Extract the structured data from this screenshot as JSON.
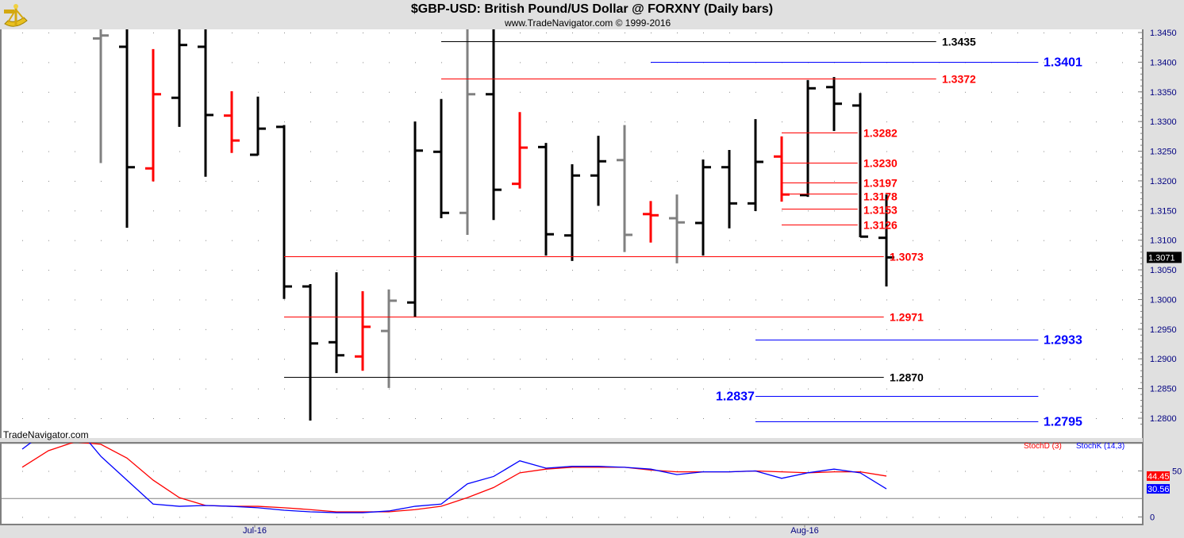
{
  "chart_data": {
    "type": "ohlc",
    "title": "$GBP-USD:  British Pound/US Dollar @ FORXNY  (Daily bars)",
    "subtitle": "www.TradeNavigator.com © 1999-2016",
    "watermark": "TradeNavigator.com",
    "price_axis": {
      "ylim": [
        1.278,
        1.346
      ],
      "ticks": [
        "1.3450",
        "1.3400",
        "1.3350",
        "1.3300",
        "1.3250",
        "1.3200",
        "1.3150",
        "1.3100",
        "1.3050",
        "1.3000",
        "1.2950",
        "1.2900",
        "1.2850",
        "1.2800"
      ],
      "last_price": "1.3071"
    },
    "date_axis": {
      "labels": [
        {
          "text": "Jul-16",
          "bar": 6
        },
        {
          "text": "Aug-16",
          "bar": 27
        }
      ]
    },
    "bars": [
      {
        "o": 1.344,
        "h": 1.347,
        "l": 1.323,
        "c": 1.3445,
        "color": "#808080"
      },
      {
        "o": 1.3426,
        "h": 1.347,
        "l": 1.3121,
        "c": 1.3223,
        "color": "#000000"
      },
      {
        "o": 1.3221,
        "h": 1.3422,
        "l": 1.3199,
        "c": 1.3346,
        "color": "#ff0000"
      },
      {
        "o": 1.334,
        "h": 1.347,
        "l": 1.3291,
        "c": 1.3429,
        "color": "#000000"
      },
      {
        "o": 1.3426,
        "h": 1.347,
        "l": 1.3207,
        "c": 1.3311,
        "color": "#000000"
      },
      {
        "o": 1.331,
        "h": 1.3351,
        "l": 1.3247,
        "c": 1.3268,
        "color": "#ff0000"
      },
      {
        "o": 1.3244,
        "h": 1.3342,
        "l": 1.3243,
        "c": 1.3288,
        "color": "#000000"
      },
      {
        "o": 1.3291,
        "h": 1.3294,
        "l": 1.3001,
        "c": 1.3022,
        "color": "#000000"
      },
      {
        "o": 1.3022,
        "h": 1.3026,
        "l": 1.2796,
        "c": 1.2926,
        "color": "#000000"
      },
      {
        "o": 1.2928,
        "h": 1.3046,
        "l": 1.2876,
        "c": 1.2906,
        "color": "#000000"
      },
      {
        "o": 1.2904,
        "h": 1.3014,
        "l": 1.288,
        "c": 1.2954,
        "color": "#ff0000"
      },
      {
        "o": 1.2947,
        "h": 1.3017,
        "l": 1.2851,
        "c": 1.2998,
        "color": "#808080"
      },
      {
        "o": 1.2995,
        "h": 1.33,
        "l": 1.2971,
        "c": 1.3251,
        "color": "#000000"
      },
      {
        "o": 1.3249,
        "h": 1.3338,
        "l": 1.3137,
        "c": 1.3146,
        "color": "#000000"
      },
      {
        "o": 1.3146,
        "h": 1.347,
        "l": 1.3109,
        "c": 1.3346,
        "color": "#808080"
      },
      {
        "o": 1.3346,
        "h": 1.347,
        "l": 1.3134,
        "c": 1.3185,
        "color": "#000000"
      },
      {
        "o": 1.3195,
        "h": 1.3316,
        "l": 1.3187,
        "c": 1.3256,
        "color": "#ff0000"
      },
      {
        "o": 1.3257,
        "h": 1.3264,
        "l": 1.3074,
        "c": 1.311,
        "color": "#000000"
      },
      {
        "o": 1.3108,
        "h": 1.3228,
        "l": 1.3065,
        "c": 1.3209,
        "color": "#000000"
      },
      {
        "o": 1.3209,
        "h": 1.3276,
        "l": 1.3158,
        "c": 1.3233,
        "color": "#000000"
      },
      {
        "o": 1.3235,
        "h": 1.3294,
        "l": 1.308,
        "c": 1.3109,
        "color": "#808080"
      },
      {
        "o": 1.3144,
        "h": 1.3166,
        "l": 1.3096,
        "c": 1.3142,
        "color": "#ff0000"
      },
      {
        "o": 1.3137,
        "h": 1.3177,
        "l": 1.3061,
        "c": 1.313,
        "color": "#808080"
      },
      {
        "o": 1.3129,
        "h": 1.3236,
        "l": 1.3074,
        "c": 1.3223,
        "color": "#000000"
      },
      {
        "o": 1.3223,
        "h": 1.3252,
        "l": 1.312,
        "c": 1.3162,
        "color": "#000000"
      },
      {
        "o": 1.3162,
        "h": 1.3304,
        "l": 1.3149,
        "c": 1.3232,
        "color": "#000000"
      },
      {
        "o": 1.3241,
        "h": 1.3275,
        "l": 1.3165,
        "c": 1.3177,
        "color": "#ff0000"
      },
      {
        "o": 1.3176,
        "h": 1.337,
        "l": 1.3173,
        "c": 1.3356,
        "color": "#000000"
      },
      {
        "o": 1.3358,
        "h": 1.3375,
        "l": 1.3284,
        "c": 1.333,
        "color": "#000000"
      },
      {
        "o": 1.3327,
        "h": 1.3348,
        "l": 1.3105,
        "c": 1.3106,
        "color": "#000000"
      },
      {
        "o": 1.3104,
        "h": 1.3177,
        "l": 1.3022,
        "c": 1.3071,
        "color": "#000000"
      }
    ],
    "levels": [
      {
        "label": "1.3435",
        "value": 1.3435,
        "from": 16,
        "to": 34.9,
        "color": "#000000",
        "big": false
      },
      {
        "label": "1.3401",
        "value": 1.3401,
        "from": 24,
        "to": 38.8,
        "color": "#0000ff",
        "big": true
      },
      {
        "label": "1.3372",
        "value": 1.3372,
        "from": 16,
        "to": 34.9,
        "color": "#ff0000",
        "big": false
      },
      {
        "label": "1.3282",
        "value": 1.3282,
        "from": 29,
        "to": 31.9,
        "color": "#ff0000",
        "big": false
      },
      {
        "label": "1.3230",
        "value": 1.323,
        "from": 29,
        "to": 31.9,
        "color": "#ff0000",
        "big": false
      },
      {
        "label": "1.3197",
        "value": 1.3197,
        "from": 29,
        "to": 31.9,
        "color": "#ff0000",
        "big": false
      },
      {
        "label": "1.3178",
        "value": 1.3178,
        "from": 29,
        "to": 31.9,
        "color": "#ff0000",
        "big": false
      },
      {
        "label": "1.3153",
        "value": 1.3153,
        "from": 29,
        "to": 31.9,
        "color": "#ff0000",
        "big": false
      },
      {
        "label": "1.3126",
        "value": 1.3126,
        "from": 29,
        "to": 31.9,
        "color": "#ff0000",
        "big": false
      },
      {
        "label": "1.3073",
        "value": 1.3073,
        "from": 10,
        "to": 32.9,
        "color": "#ff0000",
        "big": false
      },
      {
        "label": "1.2971",
        "value": 1.2971,
        "from": 10,
        "to": 32.9,
        "color": "#ff0000",
        "big": false
      },
      {
        "label": "1.2933",
        "value": 1.2933,
        "from": 28,
        "to": 38.8,
        "color": "#0000ff",
        "big": true
      },
      {
        "label": "1.2870",
        "value": 1.287,
        "from": 10,
        "to": 32.9,
        "color": "#000000",
        "big": false
      },
      {
        "label": "1.2837",
        "value": 1.2837,
        "from": 28,
        "to": 38.8,
        "color": "#0000ff",
        "big": true,
        "label_left": true
      },
      {
        "label": "1.2795",
        "value": 1.2795,
        "from": 28,
        "to": 38.8,
        "color": "#0000ff",
        "big": true
      }
    ],
    "stochastic": {
      "legend_d": "StochD (3)",
      "legend_k": "StochK (14,3)",
      "ticks": [
        "50",
        "0"
      ],
      "guide_lines": [
        80,
        20
      ],
      "first_bar": -3,
      "k": [
        73.7,
        95,
        100,
        66,
        40,
        14,
        11.6,
        12.5,
        11.6,
        10,
        7.3,
        5.6,
        4.7,
        4.7,
        6.5,
        11.6,
        14,
        36,
        44,
        61,
        53,
        55,
        55,
        54,
        52,
        46,
        49,
        49,
        50,
        42,
        48,
        52,
        48,
        30.56
      ],
      "d": [
        54,
        72,
        81.5,
        79,
        64,
        40,
        21,
        12.5,
        11.6,
        11.6,
        10,
        8,
        5.6,
        5.6,
        5.6,
        8,
        11.6,
        21,
        32,
        48,
        52,
        54,
        54,
        54,
        51,
        49,
        49,
        49,
        50,
        49,
        48,
        49,
        49,
        44.45
      ],
      "last_k": "30.56",
      "last_d": "44.45",
      "color_k": "#0000ff",
      "color_d": "#ff0000"
    }
  }
}
